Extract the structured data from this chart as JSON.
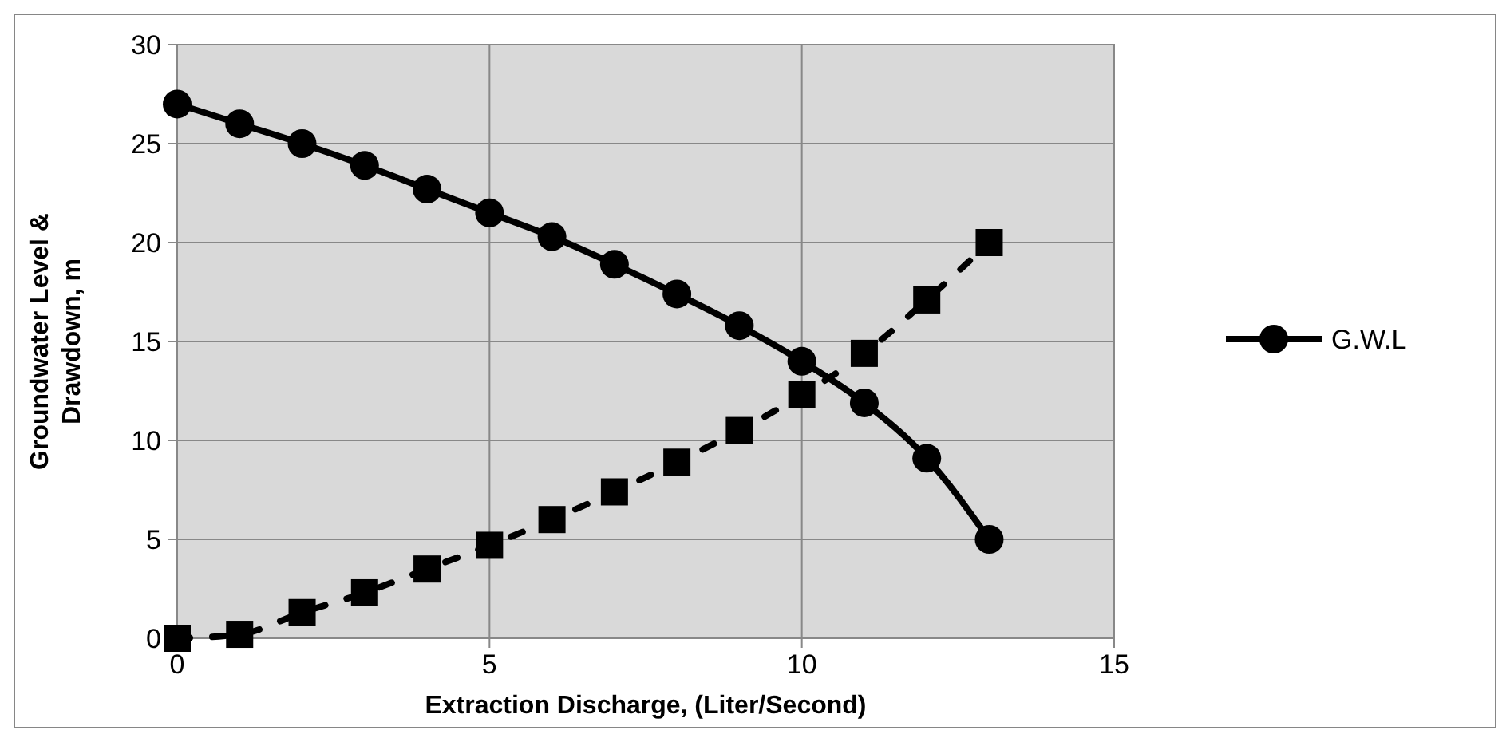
{
  "chart_data": {
    "type": "line",
    "xlabel": "Extraction Discharge, (Liter/Second)",
    "ylabel": "Groundwater Level & Drawdown, m",
    "x": [
      0,
      1,
      2,
      3,
      4,
      5,
      6,
      7,
      8,
      9,
      10,
      11,
      12,
      13
    ],
    "series": [
      {
        "name": "G.W.L",
        "color": "#000000",
        "marker": "circle",
        "line_style": "solid",
        "values": [
          27,
          26,
          25,
          23.9,
          22.7,
          21.5,
          20.3,
          18.9,
          17.4,
          15.8,
          14,
          11.9,
          9.1,
          5
        ]
      },
      {
        "color": "#000000",
        "marker": "square",
        "line_style": "dashed",
        "values": [
          0,
          0.2,
          1.3,
          2.3,
          3.5,
          4.7,
          6,
          7.4,
          8.9,
          10.5,
          12.3,
          14.4,
          17.1,
          20
        ]
      }
    ],
    "xlim": [
      0,
      15
    ],
    "xticks": [
      0,
      5,
      10,
      15
    ],
    "ylim": [
      0,
      30
    ],
    "yticks": [
      0,
      5,
      10,
      15,
      20,
      25,
      30
    ],
    "grid": true,
    "legend": "right"
  }
}
